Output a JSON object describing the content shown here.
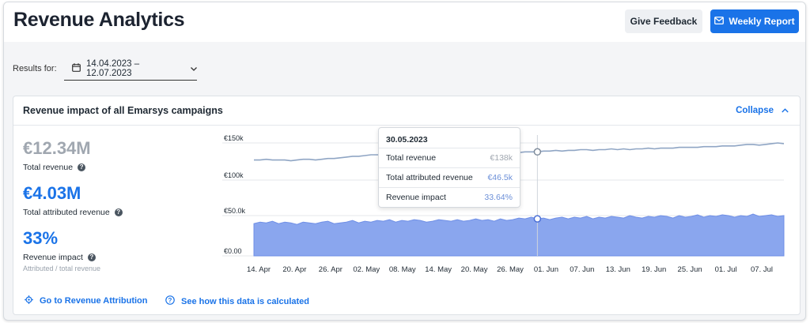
{
  "header": {
    "title": "Revenue Analytics",
    "feedback_label": "Give Feedback",
    "report_label": "Weekly Report"
  },
  "filters": {
    "results_label": "Results for:",
    "date_range": "14.04.2023 – 12.07.2023"
  },
  "card": {
    "title": "Revenue impact of all Emarsys campaigns",
    "collapse_label": "Collapse"
  },
  "metrics": {
    "total_revenue": {
      "value": "€12.34M",
      "label": "Total revenue",
      "color": "#a0a7b0"
    },
    "attributed_revenue": {
      "value": "€4.03M",
      "label": "Total attributed revenue",
      "color": "#1a73e8"
    },
    "revenue_impact": {
      "value": "33%",
      "label": "Revenue impact",
      "sub": "Attributed / total revenue",
      "color": "#1a73e8"
    }
  },
  "footer": {
    "attribution_link": "Go to Revenue Attribution",
    "calc_link": "See how this data is calculated"
  },
  "tooltip": {
    "date": "30.05.2023",
    "rows": [
      {
        "label": "Total revenue",
        "value": "€138k",
        "color": "#a0a7b0"
      },
      {
        "label": "Total attributed revenue",
        "value": "€46.5k",
        "color": "#6b8fd8"
      },
      {
        "label": "Revenue impact",
        "value": "33.64%",
        "color": "#6b8fd8"
      }
    ]
  },
  "chart_data": {
    "type": "line",
    "x_tick_labels": [
      "14. Apr",
      "20. Apr",
      "26. Apr",
      "02. May",
      "08. May",
      "14. May",
      "20. May",
      "26. May",
      "01. Jun",
      "07. Jun",
      "13. Jun",
      "19. Jun",
      "25. Jun",
      "01. Jul",
      "07. Jul"
    ],
    "upper_panel": {
      "y_tick_labels": [
        "€150k",
        "€100k"
      ],
      "series": [
        {
          "type": "line",
          "color": "#8fa5c4",
          "values": [
            127,
            127,
            128,
            127,
            127,
            127,
            126,
            127,
            128,
            128,
            127,
            128,
            129,
            129,
            130,
            131,
            132,
            132,
            133,
            134,
            134,
            134,
            135,
            134,
            136,
            135,
            136,
            135,
            136,
            136,
            137,
            136,
            137,
            136,
            137,
            137,
            136,
            137,
            137,
            137,
            137,
            138,
            138,
            137,
            138,
            138,
            138,
            139,
            139,
            140,
            139,
            140,
            140,
            141,
            141,
            140,
            141,
            141,
            142,
            141,
            142,
            141,
            142,
            142,
            143,
            142,
            143,
            143,
            143,
            144,
            144,
            144,
            144,
            145,
            145,
            145,
            146,
            146,
            146,
            147,
            148,
            148,
            147,
            148,
            149,
            150,
            149
          ]
        }
      ]
    },
    "lower_panel": {
      "y_tick_labels": [
        "€50.0k",
        "€0.00"
      ],
      "series": [
        {
          "type": "area",
          "color": "#8aa6ee",
          "values": [
            40,
            42,
            41,
            43,
            40,
            42,
            41,
            39,
            42,
            41,
            40,
            42,
            43,
            40,
            41,
            42,
            44,
            41,
            43,
            42,
            44,
            43,
            45,
            42,
            44,
            43,
            45,
            44,
            42,
            43,
            45,
            44,
            43,
            45,
            43,
            44,
            46,
            44,
            45,
            43,
            46,
            44,
            45,
            47,
            46,
            48,
            46,
            47,
            45,
            47,
            48,
            46,
            48,
            47,
            49,
            46,
            48,
            47,
            49,
            48,
            47,
            50,
            48,
            47,
            49,
            48,
            50,
            49,
            47,
            50,
            48,
            49,
            51,
            48,
            50,
            49,
            51,
            50,
            48,
            50,
            49,
            52,
            49,
            50,
            51,
            49,
            50
          ]
        }
      ]
    },
    "highlight_x": "30.05.2023"
  }
}
